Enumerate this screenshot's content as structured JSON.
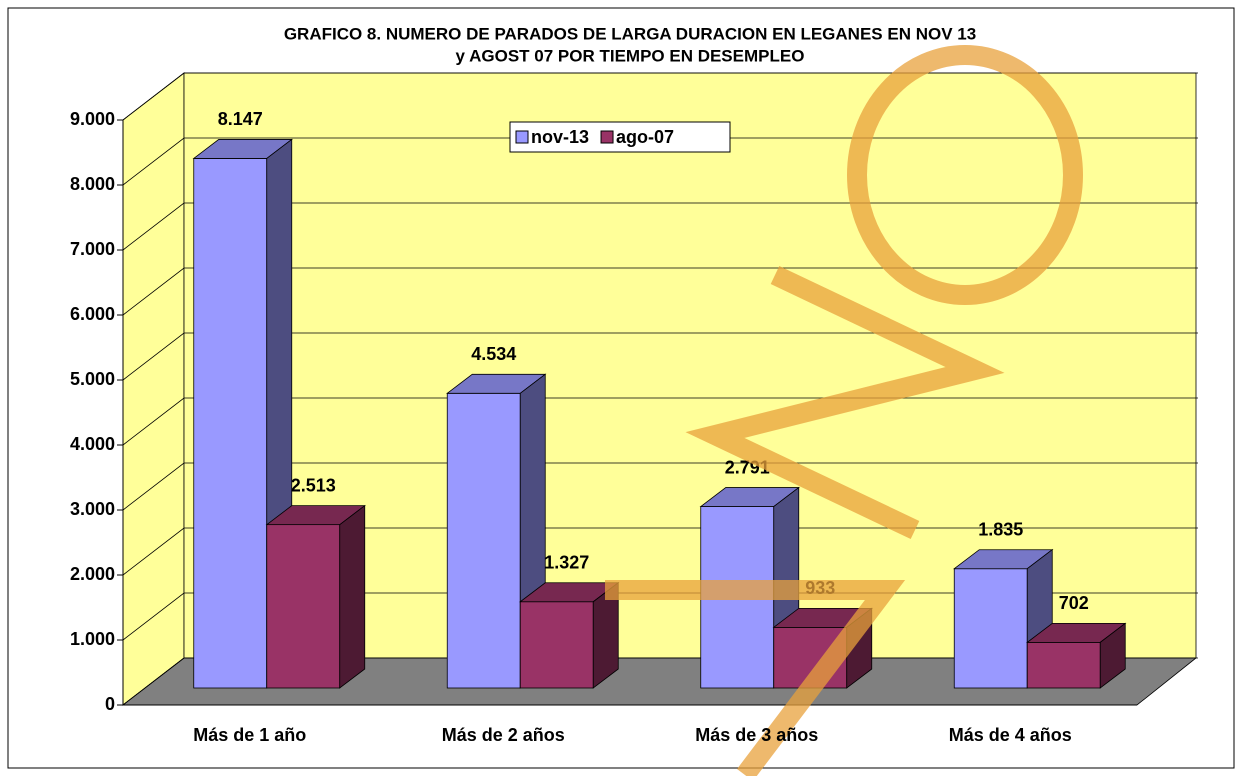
{
  "chart_data": {
    "type": "bar3d",
    "title": [
      "GRAFICO 8. NUMERO DE PARADOS DE LARGA DURACION EN LEGANES EN NOV 13",
      "y AGOST 07 POR TIEMPO EN DESEMPLEO"
    ],
    "categories": [
      "Más de 1 año",
      "Más de 2 años",
      "Más de 3 años",
      "Más de 4 años"
    ],
    "series": [
      {
        "name": "nov-13",
        "color": "#9999ff",
        "values": [
          8147,
          4534,
          2791,
          1835
        ],
        "value_labels": [
          "8.147",
          "4.534",
          "2.791",
          "1.835"
        ]
      },
      {
        "name": "ago-07",
        "color": "#993366",
        "values": [
          2513,
          1327,
          933,
          702
        ],
        "value_labels": [
          "2.513",
          "1.327",
          "933",
          "702"
        ]
      }
    ],
    "ylim": [
      0,
      9000
    ],
    "yticks": [
      0,
      {
        "value": 1000,
        "label": "1.000"
      },
      {
        "value": 2000,
        "label": "2.000"
      },
      {
        "value": 3000,
        "label": "3.000"
      },
      {
        "value": 4000,
        "label": "4.000"
      },
      {
        "value": 5000,
        "label": "5.000"
      },
      {
        "value": 6000,
        "label": "6.000"
      },
      {
        "value": 7000,
        "label": "7.000"
      },
      {
        "value": 8000,
        "label": "8.000"
      },
      {
        "value": 9000,
        "label": "9.000"
      }
    ],
    "grid": true,
    "legend": "top"
  }
}
